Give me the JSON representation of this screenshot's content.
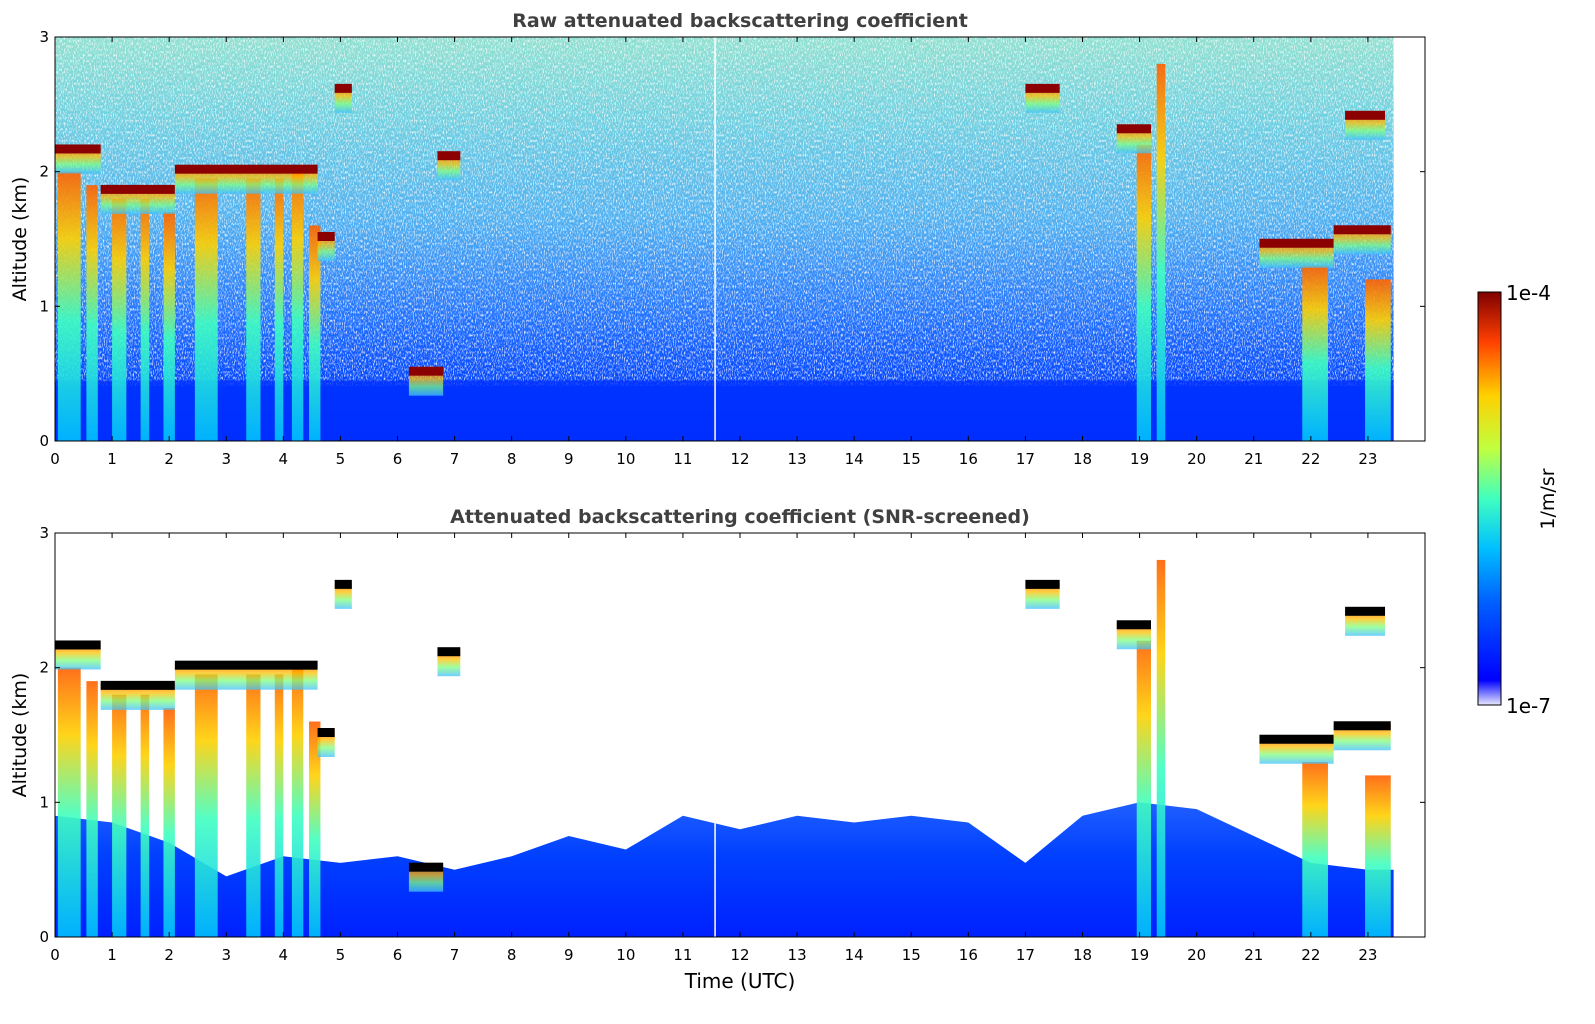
{
  "chart_data": [
    {
      "type": "heatmap",
      "title": "Raw attenuated backscattering coefficient",
      "ylabel": "Altitude (km)",
      "xlabel": "",
      "xlim": [
        0,
        24
      ],
      "ylim": [
        0,
        3
      ],
      "x_ticks": [
        "0",
        "1",
        "2",
        "3",
        "4",
        "5",
        "6",
        "7",
        "8",
        "9",
        "10",
        "11",
        "12",
        "13",
        "14",
        "15",
        "16",
        "17",
        "18",
        "19",
        "20",
        "21",
        "22",
        "23"
      ],
      "y_ticks": [
        "0",
        "1",
        "2",
        "3"
      ],
      "data_extent_hours": [
        0,
        23.45
      ],
      "color_scale": "log",
      "features": [
        {
          "label": "cloud layer",
          "t_start": 0.0,
          "t_end": 0.8,
          "alt_km": 2.15
        },
        {
          "label": "cloud layer",
          "t_start": 0.8,
          "t_end": 2.1,
          "alt_km": 1.85
        },
        {
          "label": "cloud layer",
          "t_start": 2.1,
          "t_end": 4.6,
          "alt_km": 2.0
        },
        {
          "label": "cloud layer",
          "t_start": 4.6,
          "t_end": 4.9,
          "alt_km": 1.5
        },
        {
          "label": "elevated layer",
          "t_start": 4.9,
          "t_end": 5.2,
          "alt_km": 2.6
        },
        {
          "label": "low cloud",
          "t_start": 6.2,
          "t_end": 6.8,
          "alt_km": 0.5
        },
        {
          "label": "elevated layer",
          "t_start": 6.7,
          "t_end": 7.1,
          "alt_km": 2.1
        },
        {
          "label": "elevated cloud",
          "t_start": 17.0,
          "t_end": 17.6,
          "alt_km": 2.6
        },
        {
          "label": "elevated cloud",
          "t_start": 18.6,
          "t_end": 19.2,
          "alt_km": 2.3
        },
        {
          "label": "cloud layer",
          "t_start": 21.1,
          "t_end": 22.4,
          "alt_km": 1.45
        },
        {
          "label": "cloud layer",
          "t_start": 22.4,
          "t_end": 23.4,
          "alt_km": 1.55
        },
        {
          "label": "elevated layer",
          "t_start": 22.6,
          "t_end": 23.3,
          "alt_km": 2.4
        }
      ]
    },
    {
      "type": "heatmap",
      "title": "Attenuated backscattering coefficient (SNR-screened)",
      "ylabel": "Altitude (km)",
      "xlabel": "Time (UTC)",
      "xlim": [
        0,
        24
      ],
      "ylim": [
        0,
        3
      ],
      "x_ticks": [
        "0",
        "1",
        "2",
        "3",
        "4",
        "5",
        "6",
        "7",
        "8",
        "9",
        "10",
        "11",
        "12",
        "13",
        "14",
        "15",
        "16",
        "17",
        "18",
        "19",
        "20",
        "21",
        "22",
        "23"
      ],
      "y_ticks": [
        "0",
        "1",
        "2",
        "3"
      ],
      "data_extent_hours": [
        0,
        23.45
      ],
      "color_scale": "log",
      "screened_color": "#ffffff",
      "saturated_color": "#000000"
    }
  ],
  "colorbar": {
    "label": "1/m/sr",
    "max_label": "1e-4",
    "min_label": "1e-7",
    "min": 1e-07,
    "max": 0.0001,
    "colormap": "jet"
  }
}
